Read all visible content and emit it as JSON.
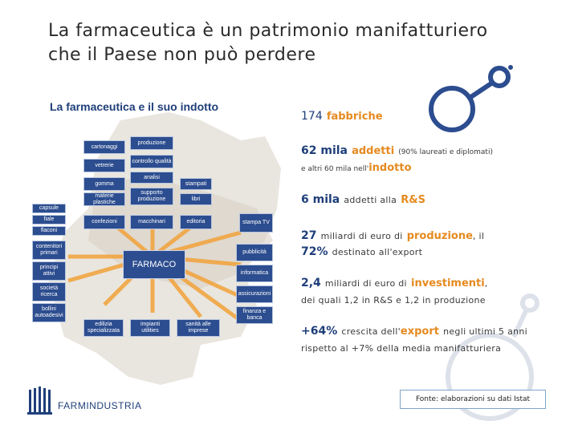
{
  "title": {
    "line1": "La farmaceutica è un patrimonio manifatturiero",
    "line2": "che il Paese non può perdere"
  },
  "map": {
    "subtitle": "La farmaceutica e il suo indotto",
    "center": "FARMACO",
    "nodes": {
      "cartonaggi": "cartonaggi",
      "vetrerie": "vetrerie",
      "gomma": "gomma",
      "materie_plastiche": "materie plastiche",
      "produzione": "produzione",
      "controllo_qualita": "controllo qualità",
      "analisi": "analisi",
      "supporto_produzione": "supporto produzione",
      "stampati": "stampati",
      "libri": "libri",
      "confezioni": "confezioni",
      "macchinari": "macchinari",
      "editoria": "editoria",
      "stampa_tv": "stampa TV",
      "capsule": "capsule",
      "fiale": "fiale",
      "flaconi": "flaconi",
      "contenitori_primari": "contenitori primari",
      "principi_attivi": "principi attivi",
      "societa_ricerca": "società ricerca",
      "bollini_autoadesivi": "bollini autoadesivi",
      "edilizia_specializzata": "edilizia specializzata",
      "impianti_utilities": "impianti utilities",
      "sanita_alle_imprese": "sanità alle imprese",
      "pubblicita": "pubblicità",
      "informatica": "informatica",
      "assicurazioni": "assicurazioni",
      "finanza_e_banca": "finanza e banca"
    }
  },
  "stats": [
    {
      "num": "174",
      "key": "fabbriche"
    },
    {
      "num": "62 mila",
      "key": "addetti",
      "note": "(90% laureati e diplomati)",
      "line2_pre": "e altri 60 mila nell'",
      "line2_key": "indotto"
    },
    {
      "num": "6 mila",
      "pre": "addetti alla",
      "key": "R&S"
    },
    {
      "num": "27",
      "pre": "miliardi di euro di",
      "key": "produzione",
      "post": ", il",
      "num2": "72%",
      "line2": "destinato all'export"
    },
    {
      "num": "2,4",
      "pre": "miliardi di euro di",
      "key": "investimenti",
      "post": ",",
      "line2": "dei quali 1,2 in R&S e 1,2 in produzione"
    },
    {
      "num": "+64%",
      "pre": "crescita dell'",
      "key": "export",
      "post": "negli ultimi 5 anni",
      "line2": "rispetto al +7% della media manifatturiera"
    }
  ],
  "footer": {
    "logo": "FARMINDUSTRIA",
    "source": "Fonte: elaborazioni su dati Istat"
  },
  "colors": {
    "navy": "#2c4d8f",
    "orange": "#e58a1f",
    "accent_blue": "#1f3f7a"
  }
}
